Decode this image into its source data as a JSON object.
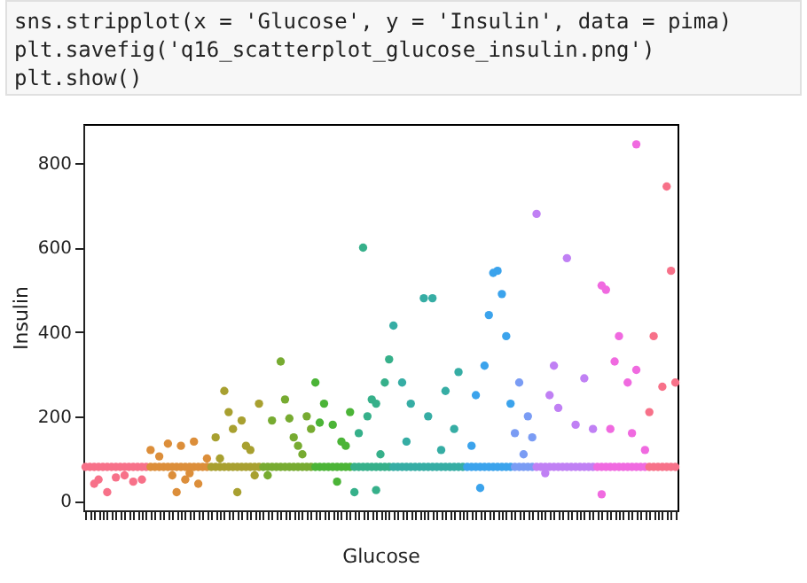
{
  "chart_data": {
    "type": "scatter",
    "xlabel": "Glucose",
    "ylabel": "Insulin",
    "annotations": [
      "sns.stripplot(x = 'Glucose', y = 'Insulin', data = pima)",
      "plt.savefig('q16_scatterplot_glucose_insulin.png')",
      "plt.show()"
    ],
    "categories": [
      null,
      null,
      null,
      null,
      null,
      null,
      null,
      null,
      null,
      null,
      null,
      null,
      null,
      null,
      null,
      null,
      null,
      null,
      null,
      null,
      null,
      null,
      null,
      null,
      null,
      null,
      null,
      null,
      null,
      null,
      null,
      null,
      null,
      null,
      null,
      null,
      null,
      null,
      null,
      null,
      null,
      null,
      null,
      null,
      null,
      null,
      null,
      null,
      null,
      null,
      null,
      null,
      null,
      null,
      null,
      null,
      null,
      null,
      null,
      null,
      null,
      null,
      null,
      null,
      null,
      null,
      null,
      null,
      null,
      null,
      null,
      null,
      null,
      null,
      null,
      null,
      null,
      null,
      null,
      null,
      null,
      null,
      null,
      null,
      null,
      null,
      null,
      null,
      null,
      null,
      null,
      null,
      null,
      null,
      null,
      null,
      null,
      null,
      null,
      null,
      null,
      null,
      null,
      null,
      null,
      null,
      null,
      null,
      null,
      null,
      null,
      null,
      null,
      null,
      null,
      null,
      null,
      null,
      null,
      null,
      null,
      null,
      null,
      null,
      null,
      null,
      null,
      null,
      null,
      null,
      null,
      null,
      null,
      null,
      null,
      null,
      null
    ],
    "ylim": [
      -23,
      893
    ],
    "yticks": [
      0,
      200,
      400,
      600,
      800
    ],
    "grid": false,
    "marker": "circle",
    "series": [
      {
        "colors": [
          "#f77189",
          "#f77189",
          "#f77189",
          "#f77189",
          "#f77189",
          "#f77189",
          "#f77189",
          "#f77189",
          "#f77189",
          "#f77189",
          "#f77189",
          "#f77189",
          "#f77189",
          "#f77189",
          "#f77189",
          "#dc8e3a",
          "#dc8e3a",
          "#dc8e3a",
          "#dc8e3a",
          "#dc8e3a",
          "#dc8e3a",
          "#dc8e3a",
          "#dc8e3a",
          "#dc8e3a",
          "#dc8e3a",
          "#dc8e3a",
          "#dc8e3a",
          "#dc8e3a",
          "#dc8e3a",
          "#a8a030",
          "#a8a030",
          "#a8a030",
          "#a8a030",
          "#a8a030",
          "#a8a030",
          "#a8a030",
          "#a8a030",
          "#a8a030",
          "#a8a030",
          "#a8a030",
          "#a8a030",
          "#77ab31",
          "#77ab31",
          "#77ab31",
          "#77ab31",
          "#77ab31",
          "#77ab31",
          "#77ab31",
          "#77ab31",
          "#77ab31",
          "#77ab31",
          "#77ab31",
          "#77ab31",
          "#4bb437",
          "#4bb437",
          "#4bb437",
          "#4bb437",
          "#4bb437",
          "#4bb437",
          "#4bb437",
          "#4bb437",
          "#4bb437",
          "#36b08a",
          "#36b08a",
          "#36b08a",
          "#36b08a",
          "#36b08a",
          "#36b08a",
          "#36b08a",
          "#36b08a",
          "#36b08a",
          "#36ada4",
          "#36ada4",
          "#36ada4",
          "#36ada4",
          "#36ada4",
          "#36ada4",
          "#36ada4",
          "#36ada4",
          "#36ada4",
          "#36ada4",
          "#36ada4",
          "#36ada4",
          "#36ada4",
          "#36ada4",
          "#36ada4",
          "#36ada4",
          "#36ada4",
          "#3ba3ec",
          "#3ba3ec",
          "#3ba3ec",
          "#3ba3ec",
          "#3ba3ec",
          "#3ba3ec",
          "#3ba3ec",
          "#3ba3ec",
          "#3ba3ec",
          "#3ba3ec",
          "#3ba3ec",
          "#7a9cf4",
          "#7a9cf4",
          "#7a9cf4",
          "#7a9cf4",
          "#7a9cf4",
          "#c080f4",
          "#c080f4",
          "#c080f4",
          "#c080f4",
          "#c080f4",
          "#c080f4",
          "#c080f4",
          "#c080f4",
          "#c080f4",
          "#c080f4",
          "#c080f4",
          "#c080f4",
          "#c080f4",
          "#c080f4",
          "#f06ae0",
          "#f06ae0",
          "#f06ae0",
          "#f06ae0",
          "#f06ae0",
          "#f06ae0",
          "#f06ae0",
          "#f06ae0",
          "#f06ae0",
          "#f06ae0",
          "#f06ae0",
          "#f06ae0",
          "#f77189",
          "#f77189",
          "#f77189",
          "#f77189",
          "#f77189",
          "#f77189",
          "#f77189"
        ],
        "values": [
          80,
          80,
          80,
          80,
          80,
          80,
          80,
          80,
          80,
          80,
          80,
          80,
          80,
          80,
          80,
          80,
          80,
          80,
          80,
          80,
          80,
          80,
          80,
          80,
          80,
          80,
          80,
          80,
          80,
          80,
          80,
          80,
          80,
          80,
          80,
          80,
          80,
          80,
          80,
          80,
          80,
          80,
          80,
          80,
          80,
          80,
          80,
          80,
          80,
          80,
          80,
          80,
          80,
          80,
          80,
          80,
          80,
          80,
          80,
          80,
          80,
          80,
          80,
          80,
          80,
          80,
          80,
          80,
          80,
          80,
          80,
          80,
          80,
          80,
          80,
          80,
          80,
          80,
          80,
          80,
          80,
          80,
          80,
          80,
          80,
          80,
          80,
          80,
          80,
          80,
          80,
          80,
          80,
          80,
          80,
          80,
          80,
          80,
          80,
          80,
          80,
          80,
          80,
          80,
          80,
          80,
          80,
          80,
          80,
          80,
          80,
          80,
          80,
          80,
          80,
          80,
          80,
          80,
          80,
          80,
          80,
          80,
          80,
          80,
          80,
          80,
          80,
          80,
          80,
          80,
          80,
          80,
          80,
          80,
          80,
          80,
          80
        ]
      },
      {
        "colors": [
          null,
          null,
          "#f77189",
          "#f77189",
          null,
          "#f77189",
          null,
          "#f77189",
          null,
          "#f77189",
          null,
          "#f77189",
          null,
          "#f77189",
          null,
          "#dc8e3a",
          null,
          "#dc8e3a",
          null,
          "#dc8e3a",
          "#dc8e3a",
          "#dc8e3a",
          "#dc8e3a",
          "#dc8e3a",
          "#dc8e3a",
          "#dc8e3a",
          "#dc8e3a",
          null,
          "#dc8e3a",
          null,
          "#a8a030",
          "#a8a030",
          "#a8a030",
          "#a8a030",
          "#a8a030",
          "#a8a030",
          "#a8a030",
          "#a8a030",
          "#a8a030",
          "#a8a030",
          "#a8a030",
          null,
          "#77ab31",
          "#77ab31",
          null,
          "#77ab31",
          "#77ab31",
          "#77ab31",
          "#77ab31",
          "#77ab31",
          "#77ab31",
          "#77ab31",
          "#77ab31",
          "#4bb437",
          "#4bb437",
          "#4bb437",
          null,
          "#4bb437",
          "#4bb437",
          "#4bb437",
          "#4bb437",
          "#4bb437",
          "#36b08a",
          "#36b08a",
          "#36b08a",
          "#36b08a",
          "#36b08a",
          "#36b08a",
          "#36b08a",
          "#36b08a",
          "#36b08a",
          "#36ada4",
          null,
          "#36ada4",
          "#36ada4",
          "#36ada4",
          null,
          null,
          "#36ada4",
          "#36ada4",
          "#36ada4",
          null,
          "#36ada4",
          "#36ada4",
          null,
          "#36ada4",
          "#36ada4",
          null,
          null,
          "#3ba3ec",
          "#3ba3ec",
          "#3ba3ec",
          "#3ba3ec",
          "#3ba3ec",
          "#3ba3ec",
          "#3ba3ec",
          "#3ba3ec",
          "#3ba3ec",
          "#3ba3ec",
          "#7a9cf4",
          "#7a9cf4",
          "#7a9cf4",
          "#7a9cf4",
          "#7a9cf4",
          "#c080f4",
          null,
          "#c080f4",
          "#c080f4",
          "#c080f4",
          "#c080f4",
          null,
          "#c080f4",
          null,
          "#c080f4",
          null,
          "#c080f4",
          null,
          "#c080f4",
          null,
          "#f06ae0",
          "#f06ae0",
          "#f06ae0",
          "#f06ae0",
          "#f06ae0",
          null,
          "#f06ae0",
          "#f06ae0",
          "#f06ae0",
          null,
          "#f06ae0",
          "#f77189",
          "#f77189",
          null,
          "#f77189",
          "#f77189",
          "#f77189",
          "#f77189"
        ],
        "values": [
          null,
          null,
          40,
          50,
          null,
          20,
          null,
          55,
          null,
          60,
          null,
          45,
          null,
          50,
          null,
          120,
          null,
          105,
          null,
          135,
          60,
          20,
          130,
          50,
          65,
          140,
          40,
          null,
          100,
          null,
          150,
          100,
          260,
          210,
          170,
          20,
          190,
          130,
          120,
          60,
          230,
          null,
          60,
          190,
          null,
          330,
          240,
          195,
          150,
          130,
          110,
          200,
          170,
          280,
          185,
          230,
          null,
          180,
          45,
          140,
          130,
          210,
          20,
          160,
          600,
          200,
          240,
          230,
          110,
          280,
          335,
          415,
          null,
          280,
          140,
          230,
          null,
          null,
          480,
          200,
          480,
          null,
          120,
          260,
          null,
          170,
          305,
          null,
          null,
          130,
          250,
          30,
          320,
          440,
          540,
          545,
          490,
          390,
          230,
          160,
          280,
          110,
          200,
          150,
          680,
          null,
          65,
          250,
          320,
          220,
          null,
          575,
          null,
          180,
          null,
          290,
          null,
          170,
          null,
          510,
          500,
          170,
          330,
          390,
          null,
          280,
          160,
          845,
          null,
          120,
          210,
          390,
          null,
          270,
          745,
          545,
          280
        ]
      },
      {
        "colors": [
          null,
          null,
          null,
          null,
          null,
          null,
          null,
          null,
          null,
          null,
          null,
          null,
          null,
          null,
          null,
          null,
          null,
          null,
          null,
          null,
          null,
          null,
          null,
          null,
          null,
          null,
          null,
          null,
          null,
          null,
          null,
          null,
          null,
          null,
          null,
          null,
          null,
          null,
          null,
          null,
          null,
          null,
          null,
          null,
          null,
          null,
          null,
          null,
          null,
          null,
          null,
          null,
          null,
          null,
          null,
          null,
          null,
          null,
          null,
          null,
          null,
          null,
          null,
          null,
          null,
          null,
          null,
          "#36b08a",
          null,
          null,
          null,
          null,
          null,
          null,
          null,
          null,
          null,
          null,
          null,
          null,
          null,
          null,
          null,
          null,
          null,
          null,
          null,
          null,
          null,
          null,
          null,
          null,
          null,
          null,
          null,
          null,
          null,
          null,
          null,
          null,
          null,
          null,
          null,
          null,
          null,
          null,
          null,
          null,
          null,
          null,
          null,
          null,
          null,
          null,
          null,
          null,
          null,
          null,
          null,
          "#f06ae0",
          null,
          null,
          null,
          null,
          null,
          null,
          null,
          "#f06ae0",
          null,
          null,
          null,
          null,
          null,
          null,
          null,
          null,
          null
        ],
        "values": [
          null,
          null,
          null,
          null,
          null,
          null,
          null,
          null,
          null,
          null,
          null,
          null,
          null,
          null,
          null,
          null,
          null,
          null,
          null,
          null,
          null,
          null,
          null,
          null,
          null,
          null,
          null,
          null,
          null,
          null,
          null,
          null,
          null,
          null,
          null,
          null,
          null,
          null,
          null,
          null,
          null,
          null,
          null,
          null,
          null,
          null,
          null,
          null,
          null,
          null,
          null,
          null,
          null,
          null,
          null,
          null,
          null,
          null,
          null,
          null,
          null,
          null,
          null,
          null,
          null,
          null,
          null,
          25,
          null,
          null,
          null,
          null,
          null,
          null,
          null,
          null,
          null,
          null,
          null,
          null,
          null,
          null,
          null,
          null,
          null,
          null,
          null,
          null,
          null,
          null,
          null,
          null,
          null,
          null,
          null,
          null,
          null,
          null,
          null,
          null,
          null,
          null,
          null,
          null,
          null,
          null,
          null,
          null,
          null,
          null,
          null,
          null,
          null,
          null,
          null,
          null,
          null,
          null,
          null,
          15,
          null,
          null,
          null,
          null,
          null,
          null,
          null,
          310,
          null,
          null,
          null,
          null,
          null,
          null,
          null,
          null,
          null
        ]
      }
    ]
  }
}
